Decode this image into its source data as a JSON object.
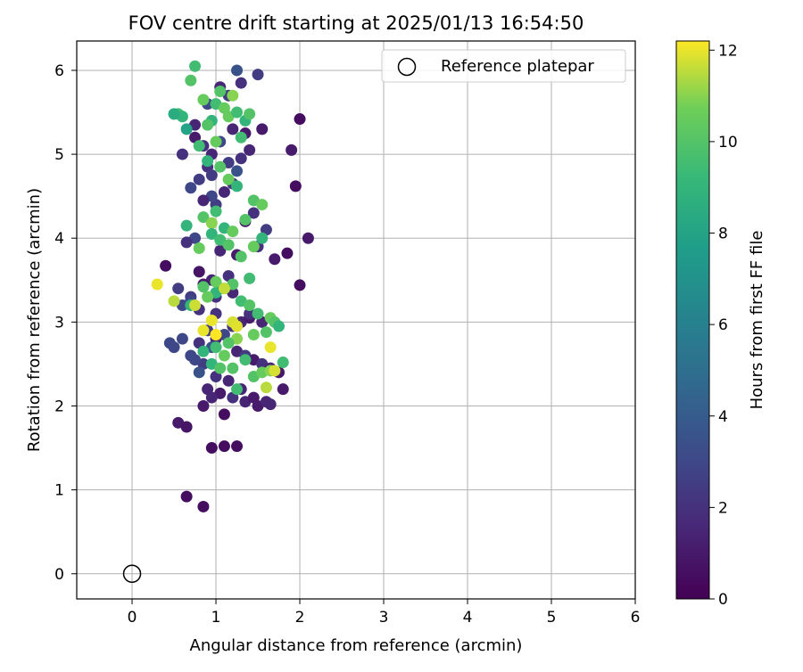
{
  "chart_data": {
    "type": "scatter",
    "title": "FOV centre drift starting at 2025/01/13 16:54:50",
    "xlabel": "Angular distance from reference (arcmin)",
    "ylabel": "Rotation from reference (arcmin)",
    "xlim": [
      -0.66,
      6.0
    ],
    "ylim": [
      -0.3,
      6.35
    ],
    "xticks": [
      0,
      1,
      2,
      3,
      4,
      5,
      6
    ],
    "yticks": [
      0,
      1,
      2,
      3,
      4,
      5,
      6
    ],
    "grid": true,
    "legend": {
      "position": "top-right",
      "entries": [
        "Reference platepar"
      ]
    },
    "reference_point": {
      "x": 0,
      "y": 0
    },
    "colorbar": {
      "label": "Hours from first FF file",
      "colormap": "viridis",
      "range": [
        0,
        12.2
      ],
      "ticks": [
        0,
        2,
        4,
        6,
        8,
        10,
        12
      ]
    },
    "series": [
      {
        "x": [
          0.75,
          0.85,
          0.95,
          1.05,
          1.15,
          1.25,
          1.3,
          1.4,
          1.55,
          0.9,
          0.7,
          0.8,
          1.1,
          1.2,
          1.0,
          0.95,
          0.85,
          1.35,
          1.45,
          1.6,
          0.75,
          0.65,
          1.05,
          1.25,
          1.5,
          1.7,
          1.85,
          2.0,
          2.1,
          1.9,
          0.8,
          0.95,
          1.15,
          1.05,
          0.85,
          0.7,
          0.6,
          1.0,
          1.3,
          1.4,
          1.2,
          0.9,
          1.1,
          1.0,
          0.8,
          0.95,
          1.25,
          1.35,
          1.45,
          1.55,
          1.65,
          1.75,
          0.45,
          0.5,
          0.6,
          0.7,
          0.85,
          1.0,
          1.15,
          0.9,
          1.05,
          1.2,
          1.35,
          1.5,
          1.65,
          0.75,
          0.8,
          0.55,
          0.65,
          1.1,
          1.3,
          1.45,
          1.6,
          0.95,
          0.85,
          0.65,
          0.85,
          0.95,
          1.1,
          1.25,
          0.8,
          0.4,
          0.55,
          0.7,
          1.0,
          1.2,
          1.4,
          1.55,
          1.8,
          1.95,
          2.0,
          1.05,
          1.15,
          0.9,
          1.3,
          1.5,
          0.75,
          1.35,
          1.2,
          0.6,
          1.25,
          0.95
        ],
        "y": [
          5.2,
          5.1,
          5.0,
          5.15,
          4.9,
          4.8,
          4.95,
          5.05,
          5.3,
          4.85,
          4.6,
          4.7,
          4.55,
          4.65,
          4.4,
          4.5,
          4.45,
          4.2,
          4.3,
          4.1,
          4.0,
          3.95,
          3.85,
          3.8,
          3.9,
          3.75,
          3.82,
          3.44,
          4.0,
          5.05,
          3.6,
          3.5,
          3.55,
          3.4,
          3.45,
          3.3,
          3.2,
          3.1,
          3.0,
          3.05,
          2.95,
          2.9,
          2.85,
          2.8,
          2.75,
          2.7,
          2.65,
          2.6,
          2.55,
          2.5,
          2.45,
          2.4,
          2.75,
          2.7,
          2.8,
          2.6,
          2.5,
          2.35,
          2.3,
          2.2,
          2.15,
          2.1,
          2.05,
          2.0,
          2.02,
          2.55,
          2.4,
          1.8,
          1.75,
          1.9,
          2.2,
          2.1,
          2.05,
          1.5,
          0.8,
          0.92,
          2.0,
          2.1,
          1.52,
          1.52,
          3.15,
          3.67,
          3.4,
          3.25,
          3.3,
          3.35,
          3.1,
          3.0,
          2.2,
          4.62,
          5.42,
          5.8,
          5.7,
          5.6,
          5.85,
          5.95,
          5.35,
          5.25,
          5.3,
          5.0,
          6.0,
          4.75
        ],
        "c": [
          1.0,
          2.0,
          1.5,
          3.0,
          2.5,
          3.5,
          2.0,
          1.5,
          1.0,
          2.0,
          3.0,
          2.5,
          1.5,
          2.0,
          2.5,
          3.0,
          1.5,
          1.0,
          2.0,
          2.5,
          3.0,
          2.0,
          1.5,
          1.0,
          2.0,
          1.0,
          0.5,
          0.5,
          1.0,
          1.0,
          0.8,
          1.5,
          2.0,
          1.5,
          1.0,
          2.5,
          3.0,
          2.0,
          1.5,
          1.0,
          2.0,
          2.5,
          3.0,
          1.5,
          2.0,
          3.5,
          1.5,
          2.5,
          1.0,
          2.0,
          1.5,
          1.0,
          3.0,
          3.0,
          3.0,
          3.0,
          2.5,
          2.0,
          1.5,
          1.5,
          1.0,
          2.0,
          1.5,
          1.0,
          1.5,
          3.0,
          3.5,
          1.0,
          0.8,
          0.5,
          1.5,
          1.0,
          1.5,
          0.5,
          0.5,
          0.5,
          1.0,
          1.5,
          0.5,
          0.5,
          2.0,
          0.5,
          2.5,
          3.0,
          2.0,
          1.5,
          2.0,
          1.5,
          1.0,
          0.5,
          0.5,
          1.5,
          2.5,
          3.0,
          2.0,
          2.5,
          1.5,
          1.0,
          1.5,
          2.0,
          3.5,
          2.5
        ],
        "name": ""
      },
      {
        "x": [
          0.75,
          0.7,
          0.85,
          1.0,
          1.1,
          1.2,
          1.05,
          0.95,
          0.9,
          1.15,
          1.25,
          1.35,
          1.4,
          1.3,
          1.0,
          0.65,
          0.8,
          0.9,
          1.05,
          1.15,
          1.25,
          1.45,
          1.55,
          1.0,
          0.85,
          0.95,
          1.1,
          1.2,
          1.35,
          0.95,
          1.05,
          1.15,
          0.8,
          0.65,
          0.55,
          0.6,
          1.3,
          1.45,
          1.55,
          1.4,
          1.2,
          1.1,
          1.0,
          0.9,
          1.3,
          1.4,
          1.5,
          1.65,
          1.7,
          1.75,
          1.8,
          1.6,
          1.45,
          1.25,
          1.15,
          1.0,
          0.85,
          1.1,
          1.2,
          1.35,
          0.95,
          1.05,
          1.25,
          1.45,
          1.55,
          1.65,
          0.7,
          0.85,
          1.0,
          0.5
        ],
        "y": [
          6.05,
          5.88,
          5.65,
          5.6,
          5.55,
          5.7,
          5.75,
          5.4,
          5.35,
          5.45,
          5.5,
          5.4,
          5.48,
          5.2,
          5.15,
          5.3,
          5.1,
          4.92,
          4.85,
          4.7,
          4.62,
          4.45,
          4.4,
          4.32,
          4.25,
          4.18,
          4.12,
          4.08,
          4.22,
          4.05,
          3.98,
          3.92,
          3.88,
          4.15,
          5.48,
          5.45,
          3.78,
          3.9,
          4.0,
          3.52,
          3.45,
          3.4,
          3.35,
          3.3,
          3.25,
          3.2,
          3.1,
          3.05,
          3.0,
          2.95,
          2.52,
          2.88,
          2.85,
          2.8,
          2.75,
          2.7,
          2.65,
          2.6,
          2.45,
          2.55,
          2.5,
          2.45,
          2.2,
          2.35,
          2.4,
          2.42,
          3.2,
          3.42,
          3.48,
          5.48
        ],
        "c": [
          9.5,
          10.0,
          10.5,
          9.5,
          10.5,
          11.0,
          10.0,
          9.0,
          10.0,
          10.5,
          9.5,
          9.0,
          10.0,
          9.5,
          10.5,
          8.0,
          9.5,
          9.0,
          10.0,
          10.5,
          9.0,
          10.0,
          10.5,
          9.5,
          10.0,
          11.0,
          9.0,
          10.5,
          10.0,
          9.0,
          9.5,
          10.0,
          10.5,
          9.0,
          9.5,
          9.0,
          10.0,
          10.5,
          9.0,
          9.5,
          10.0,
          10.5,
          9.0,
          10.5,
          9.5,
          10.0,
          9.5,
          10.5,
          10.0,
          9.0,
          9.5,
          10.0,
          10.5,
          11.0,
          10.0,
          9.5,
          9.0,
          10.5,
          10.0,
          9.5,
          9.0,
          10.0,
          9.5,
          10.0,
          10.5,
          11.0,
          9.0,
          10.0,
          10.5,
          8.5
        ],
        "name": ""
      },
      {
        "x": [
          0.3,
          0.5,
          0.95,
          1.0,
          1.2,
          1.65,
          1.6,
          1.7,
          0.85,
          1.1,
          1.25,
          0.75
        ],
        "y": [
          3.45,
          3.25,
          3.02,
          2.85,
          3.0,
          2.7,
          2.22,
          2.42,
          2.9,
          3.4,
          2.95,
          3.2
        ],
        "c": [
          12.0,
          11.5,
          12.0,
          12.2,
          11.8,
          12.0,
          11.5,
          11.8,
          12.0,
          11.6,
          11.9,
          11.7
        ],
        "name": ""
      }
    ]
  }
}
